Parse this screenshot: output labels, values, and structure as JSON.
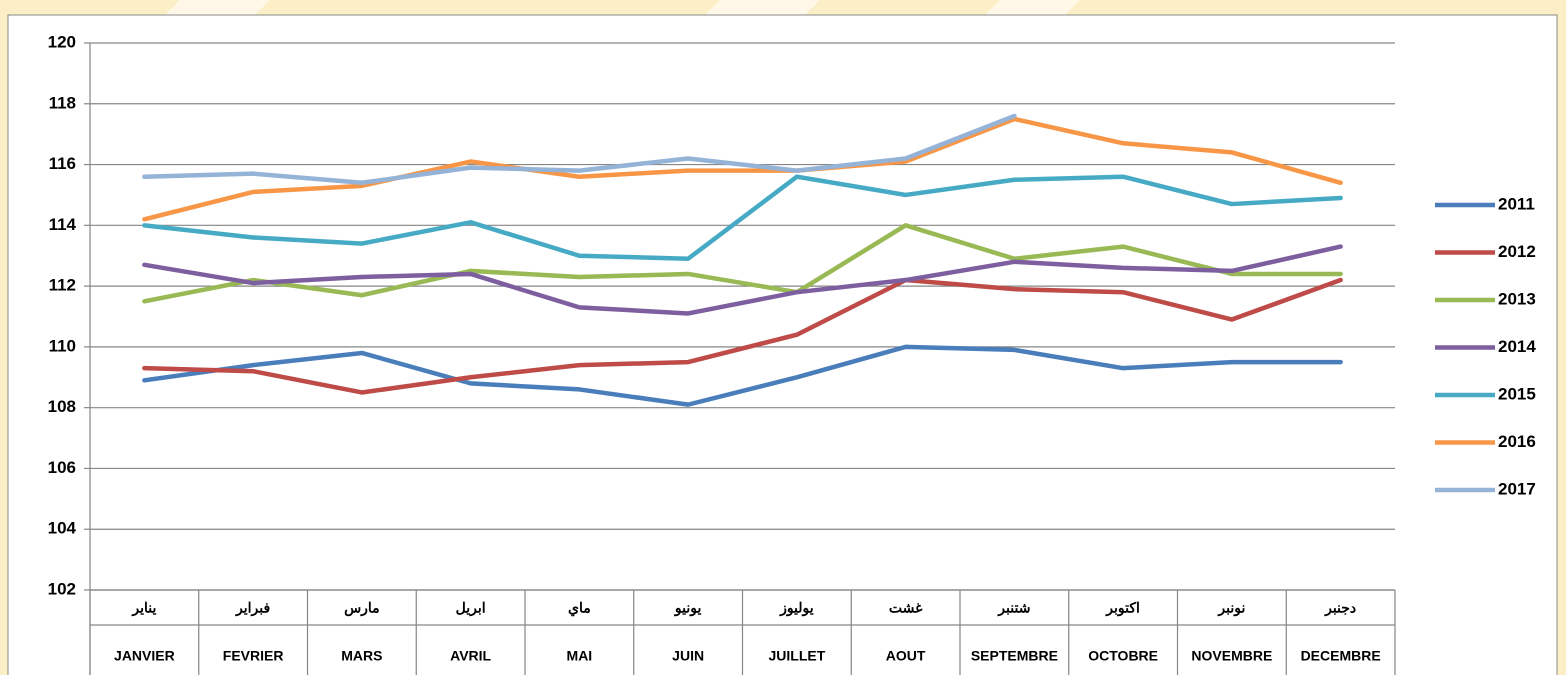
{
  "chart_data": {
    "type": "line",
    "categories": [
      "JANVIER",
      "FEVRIER",
      "MARS",
      "AVRIL",
      "MAI",
      "JUIN",
      "JUILLET",
      "AOUT",
      "SEPTEMBRE",
      "OCTOBRE",
      "NOVEMBRE",
      "DECEMBRE"
    ],
    "categories_arabic": [
      "يناير",
      "فبراير",
      "مارس",
      "ابريل",
      "ماي",
      "يونيو",
      "يوليوز",
      "غشت",
      "شتنبر",
      "اكتوبر",
      "نونبر",
      "دجنبر"
    ],
    "series": [
      {
        "name": "2011",
        "color": "#4a7ebb",
        "values": [
          108.9,
          109.4,
          109.8,
          108.8,
          108.6,
          108.1,
          109.0,
          110.0,
          109.9,
          109.3,
          109.5,
          109.5
        ]
      },
      {
        "name": "2012",
        "color": "#be4b48",
        "values": [
          109.3,
          109.2,
          108.5,
          109.0,
          109.4,
          109.5,
          110.4,
          112.2,
          111.9,
          111.8,
          110.9,
          112.2
        ]
      },
      {
        "name": "2013",
        "color": "#98b954",
        "values": [
          111.5,
          112.2,
          111.7,
          112.5,
          112.3,
          112.4,
          111.8,
          114.0,
          112.9,
          113.3,
          112.4,
          112.4
        ]
      },
      {
        "name": "2014",
        "color": "#7d5fa0",
        "values": [
          112.7,
          112.1,
          112.3,
          112.4,
          111.3,
          111.1,
          111.8,
          112.2,
          112.8,
          112.6,
          112.5,
          113.3
        ]
      },
      {
        "name": "2015",
        "color": "#46aac5",
        "values": [
          114.0,
          113.6,
          113.4,
          114.1,
          113.0,
          112.9,
          115.6,
          115.0,
          115.5,
          115.6,
          114.7,
          114.9
        ]
      },
      {
        "name": "2016",
        "color": "#f79646",
        "values": [
          114.2,
          115.1,
          115.3,
          116.1,
          115.6,
          115.8,
          115.8,
          116.1,
          117.5,
          116.7,
          116.4,
          115.4
        ]
      },
      {
        "name": "2017",
        "color": "#95b3d7",
        "values": [
          115.6,
          115.7,
          115.4,
          115.9,
          115.8,
          116.2,
          115.8,
          116.2,
          117.6,
          null,
          null,
          null
        ]
      }
    ],
    "ylim": [
      102,
      120
    ],
    "yticks": [
      102,
      104,
      106,
      108,
      110,
      112,
      114,
      116,
      118,
      120
    ],
    "grid": true,
    "legend": "right"
  }
}
